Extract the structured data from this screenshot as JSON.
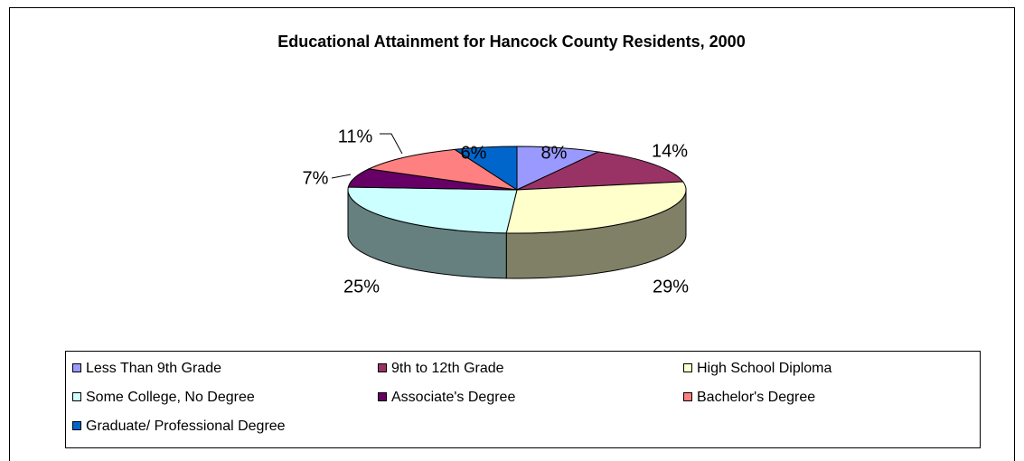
{
  "chart_data": {
    "type": "pie3d",
    "title": "Educational Attainment for Hancock County Residents, 2000",
    "categories": [
      "Less Than 9th Grade",
      "9th to 12th Grade",
      "High School Diploma",
      "Some College, No Degree",
      "Associate's Degree",
      "Bachelor's Degree",
      "Graduate/ Professional Degree"
    ],
    "values": [
      8,
      14,
      29,
      25,
      7,
      11,
      6
    ],
    "value_labels": [
      "8%",
      "14%",
      "29%",
      "25%",
      "7%",
      "11%",
      "6%"
    ],
    "colors": [
      "#9999ff",
      "#993366",
      "#ffffcc",
      "#ccffff",
      "#660066",
      "#ff8080",
      "#0066cc"
    ],
    "legend": "bottom"
  }
}
